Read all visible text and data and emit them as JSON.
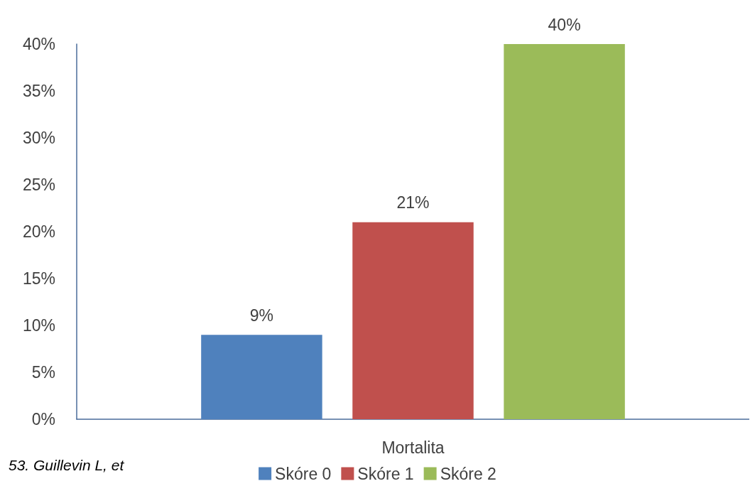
{
  "chart_data": {
    "type": "bar",
    "categories": [
      "Mortalita"
    ],
    "series": [
      {
        "name": "Skóre 0",
        "color": "#4f81bd",
        "values": [
          9
        ],
        "value_labels": [
          "9%"
        ]
      },
      {
        "name": "Skóre 1",
        "color": "#c0504d",
        "values": [
          21
        ],
        "value_labels": [
          "21%"
        ]
      },
      {
        "name": "Skóre 2",
        "color": "#9bbb59",
        "values": [
          40
        ],
        "value_labels": [
          "40%"
        ]
      }
    ],
    "ylim": [
      0,
      40
    ],
    "yticks": [
      {
        "value": 0,
        "label": "0%"
      },
      {
        "value": 5,
        "label": "5%"
      },
      {
        "value": 10,
        "label": "10%"
      },
      {
        "value": 15,
        "label": "15%"
      },
      {
        "value": 20,
        "label": "20%"
      },
      {
        "value": 25,
        "label": "25%"
      },
      {
        "value": 30,
        "label": "30%"
      },
      {
        "value": 35,
        "label": "35%"
      },
      {
        "value": 40,
        "label": "40%"
      }
    ],
    "grid": false,
    "legend": "bottom",
    "annotations": [
      "53. Guillevin L, et"
    ]
  }
}
